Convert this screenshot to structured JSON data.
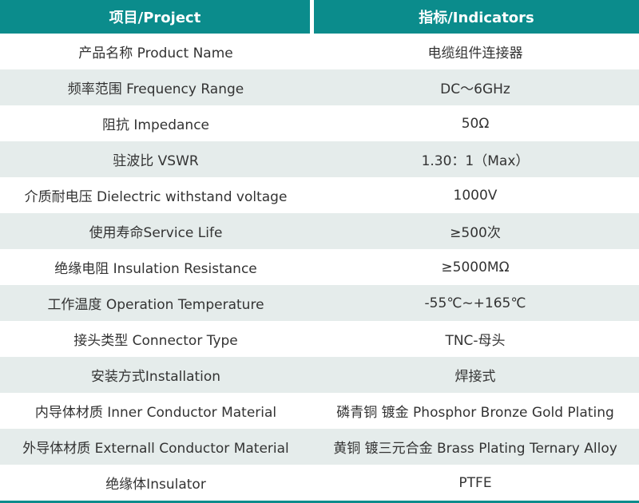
{
  "header": {
    "project_label": "项目/Project",
    "indicators_label": "指标/Indicators"
  },
  "rows": [
    {
      "project": "产品名称 Product Name",
      "indicator": "电缆组件连接器"
    },
    {
      "project": "频率范围 Frequency Range",
      "indicator": "DC～6GHz"
    },
    {
      "project": "阻抗 Impedance",
      "indicator": "50Ω"
    },
    {
      "project": "驻波比 VSWR",
      "indicator": "1.30：1（Max）"
    },
    {
      "project": "介质耐电压 Dielectric withstand voltage",
      "indicator": "1000V"
    },
    {
      "project": "使用寿命Service Life",
      "indicator": "≥500次"
    },
    {
      "project": "绝缘电阻 Insulation Resistance",
      "indicator": "≥5000MΩ"
    },
    {
      "project": "工作温度 Operation Temperature",
      "indicator": "-55℃~+165℃"
    },
    {
      "project": "接头类型  Connector Type",
      "indicator": "TNC-母头"
    },
    {
      "project": "安装方式Installation",
      "indicator": "焊接式"
    },
    {
      "project": "内导体材质 Inner Conductor Material",
      "indicator": "磷青铜 镀金 Phosphor Bronze Gold Plating"
    },
    {
      "project": "外导体材质 Externall Conductor Material",
      "indicator": "黄铜 镀三元合金 Brass Plating Ternary Alloy"
    },
    {
      "project": "绝缘体Insulator",
      "indicator": "PTFE"
    }
  ],
  "colors": {
    "header_bg": "#0b8c8c",
    "alt_row_bg": "#e5eceb",
    "text": "#333333",
    "header_text": "#ffffff"
  }
}
